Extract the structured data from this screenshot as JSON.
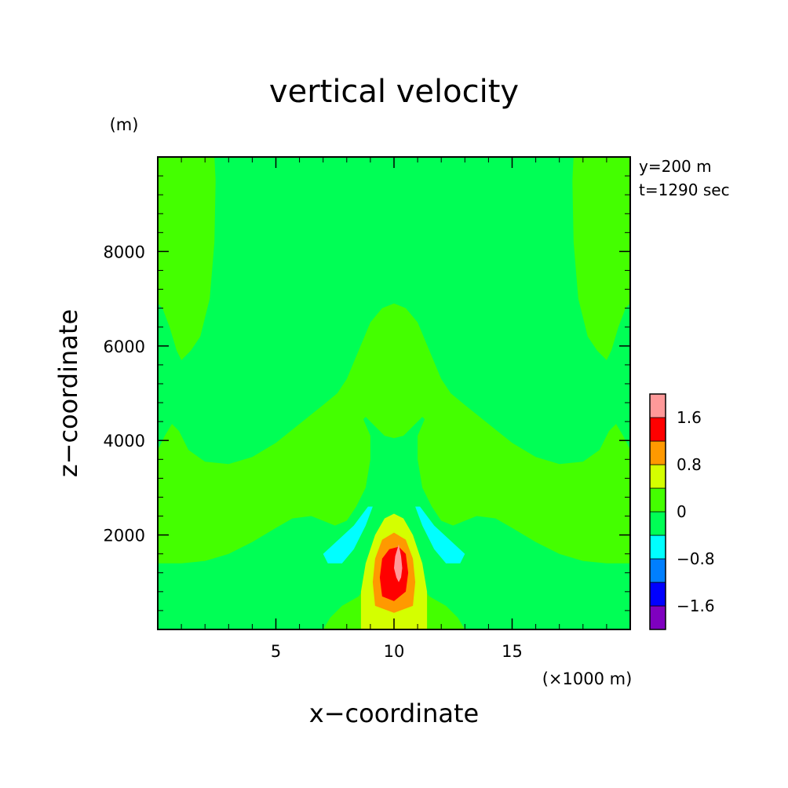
{
  "chart_data": {
    "type": "heatmap",
    "title": "vertical velocity",
    "xlabel": "x−coordinate",
    "ylabel": "z−coordinate",
    "x_unit": "(×1000 m)",
    "y_unit": "(m)",
    "annotation_lines": [
      "y=200 m",
      "t=1290 sec"
    ],
    "xlim": [
      0,
      20
    ],
    "ylim": [
      0,
      10000
    ],
    "x_ticks": [
      {
        "value": 5,
        "label": "5"
      },
      {
        "value": 10,
        "label": "10"
      },
      {
        "value": 15,
        "label": "15"
      }
    ],
    "y_ticks": [
      {
        "value": 2000,
        "label": "2000"
      },
      {
        "value": 4000,
        "label": "4000"
      },
      {
        "value": 6000,
        "label": "6000"
      },
      {
        "value": 8000,
        "label": "8000"
      }
    ],
    "colorbar": {
      "range": [
        -2.0,
        2.0
      ],
      "levels": [
        {
          "from": -2.0,
          "to": -1.6,
          "color": "#7f00bf"
        },
        {
          "from": -1.6,
          "to": -1.2,
          "color": "#0000ff"
        },
        {
          "from": -1.2,
          "to": -0.8,
          "color": "#007fff"
        },
        {
          "from": -0.8,
          "to": -0.4,
          "color": "#00ffff"
        },
        {
          "from": -0.4,
          "to": 0.0,
          "color": "#00ff55"
        },
        {
          "from": 0.0,
          "to": 0.4,
          "color": "#44ff00"
        },
        {
          "from": 0.4,
          "to": 0.8,
          "color": "#d4ff00"
        },
        {
          "from": 0.8,
          "to": 1.2,
          "color": "#ff9900"
        },
        {
          "from": 1.2,
          "to": 1.6,
          "color": "#ff0000"
        },
        {
          "from": 1.6,
          "to": 2.0,
          "color": "#ff9999"
        }
      ],
      "tick_labels": [
        {
          "value": 1.6,
          "label": "1.6"
        },
        {
          "value": 0.8,
          "label": "0.8"
        },
        {
          "value": 0,
          "label": "0"
        },
        {
          "value": -0.8,
          "label": "−0.8"
        },
        {
          "value": -1.6,
          "label": "−1.6"
        }
      ]
    },
    "regions": [
      {
        "name": "upper-left-positive",
        "level": 0.2,
        "points": [
          [
            0,
            10000
          ],
          [
            2.4,
            10000
          ],
          [
            2.45,
            9500
          ],
          [
            2.4,
            8200
          ],
          [
            2.2,
            7000
          ],
          [
            1.8,
            6200
          ],
          [
            1.4,
            5900
          ],
          [
            1.0,
            5700
          ],
          [
            0.8,
            5900
          ],
          [
            0.5,
            6400
          ],
          [
            0.2,
            6800
          ],
          [
            0,
            6900
          ]
        ]
      },
      {
        "name": "upper-right-positive",
        "level": 0.2,
        "points": [
          [
            20,
            10000
          ],
          [
            17.6,
            10000
          ],
          [
            17.55,
            9500
          ],
          [
            17.6,
            8200
          ],
          [
            17.8,
            7000
          ],
          [
            18.2,
            6200
          ],
          [
            18.6,
            5900
          ],
          [
            19.0,
            5700
          ],
          [
            19.2,
            5900
          ],
          [
            19.5,
            6400
          ],
          [
            19.8,
            6800
          ],
          [
            20,
            6900
          ]
        ]
      },
      {
        "name": "middle-positive-band",
        "level": 0.2,
        "points": [
          [
            0,
            3800
          ],
          [
            0.3,
            4100
          ],
          [
            0.6,
            4350
          ],
          [
            0.9,
            4200
          ],
          [
            1.3,
            3800
          ],
          [
            2.0,
            3550
          ],
          [
            3.0,
            3500
          ],
          [
            4.0,
            3650
          ],
          [
            5.0,
            3950
          ],
          [
            6.0,
            4350
          ],
          [
            7.0,
            4750
          ],
          [
            7.6,
            5000
          ],
          [
            8.0,
            5300
          ],
          [
            8.5,
            5900
          ],
          [
            9.0,
            6500
          ],
          [
            9.5,
            6800
          ],
          [
            10.0,
            6900
          ],
          [
            10.5,
            6800
          ],
          [
            11.0,
            6500
          ],
          [
            11.5,
            5900
          ],
          [
            12.0,
            5300
          ],
          [
            12.4,
            5000
          ],
          [
            13.0,
            4750
          ],
          [
            14.0,
            4350
          ],
          [
            15.0,
            3950
          ],
          [
            16.0,
            3650
          ],
          [
            17.0,
            3500
          ],
          [
            18.0,
            3550
          ],
          [
            18.7,
            3800
          ],
          [
            19.1,
            4200
          ],
          [
            19.4,
            4350
          ],
          [
            19.7,
            4100
          ],
          [
            20,
            3800
          ],
          [
            20,
            1400
          ],
          [
            19.0,
            1400
          ],
          [
            18.0,
            1450
          ],
          [
            17.0,
            1600
          ],
          [
            16.0,
            1850
          ],
          [
            15.0,
            2150
          ],
          [
            14.3,
            2350
          ],
          [
            13.5,
            2400
          ],
          [
            13.0,
            2300
          ],
          [
            12.5,
            2200
          ],
          [
            12.0,
            2300
          ],
          [
            11.6,
            2600
          ],
          [
            11.2,
            3000
          ],
          [
            11.0,
            3600
          ],
          [
            11.0,
            4100
          ],
          [
            11.3,
            4450
          ],
          [
            11.2,
            4500
          ],
          [
            10.8,
            4300
          ],
          [
            10.4,
            4100
          ],
          [
            10.0,
            4050
          ],
          [
            9.6,
            4100
          ],
          [
            9.2,
            4300
          ],
          [
            8.8,
            4500
          ],
          [
            8.7,
            4450
          ],
          [
            9.0,
            4100
          ],
          [
            9.0,
            3600
          ],
          [
            8.8,
            3000
          ],
          [
            8.4,
            2600
          ],
          [
            8.0,
            2300
          ],
          [
            7.5,
            2200
          ],
          [
            7.0,
            2300
          ],
          [
            6.5,
            2400
          ],
          [
            5.7,
            2350
          ],
          [
            5.0,
            2150
          ],
          [
            4.0,
            1850
          ],
          [
            3.0,
            1600
          ],
          [
            2.0,
            1450
          ],
          [
            1.0,
            1400
          ],
          [
            0,
            1400
          ]
        ]
      },
      {
        "name": "lower-positive-band",
        "level": 0.2,
        "points": [
          [
            7,
            0
          ],
          [
            7.3,
            250
          ],
          [
            7.8,
            500
          ],
          [
            8.5,
            700
          ],
          [
            8.8,
            900
          ],
          [
            9.0,
            1400
          ],
          [
            9.3,
            1900
          ],
          [
            9.6,
            2300
          ],
          [
            10.0,
            2450
          ],
          [
            10.4,
            2300
          ],
          [
            10.7,
            1900
          ],
          [
            11.0,
            1400
          ],
          [
            11.2,
            900
          ],
          [
            11.5,
            700
          ],
          [
            12.2,
            500
          ],
          [
            12.7,
            250
          ],
          [
            13,
            0
          ]
        ]
      },
      {
        "name": "core-level-0.4",
        "level": 0.6,
        "points": [
          [
            8.6,
            0
          ],
          [
            8.6,
            800
          ],
          [
            8.8,
            1400
          ],
          [
            9.2,
            2000
          ],
          [
            9.6,
            2350
          ],
          [
            10.0,
            2450
          ],
          [
            10.4,
            2350
          ],
          [
            10.8,
            2000
          ],
          [
            11.2,
            1400
          ],
          [
            11.4,
            800
          ],
          [
            11.4,
            0
          ]
        ]
      },
      {
        "name": "core-level-0.8",
        "level": 1.0,
        "points": [
          [
            9.2,
            500
          ],
          [
            9.1,
            1000
          ],
          [
            9.2,
            1500
          ],
          [
            9.5,
            1900
          ],
          [
            10.0,
            2050
          ],
          [
            10.5,
            1900
          ],
          [
            10.8,
            1500
          ],
          [
            10.9,
            1000
          ],
          [
            10.8,
            500
          ],
          [
            10.0,
            350
          ]
        ]
      },
      {
        "name": "core-level-1.2",
        "level": 1.4,
        "points": [
          [
            9.5,
            700
          ],
          [
            9.4,
            1100
          ],
          [
            9.5,
            1500
          ],
          [
            9.8,
            1700
          ],
          [
            10.2,
            1750
          ],
          [
            10.5,
            1600
          ],
          [
            10.6,
            1200
          ],
          [
            10.5,
            800
          ],
          [
            10.0,
            600
          ]
        ]
      },
      {
        "name": "core-level-1.6",
        "level": 1.8,
        "points": [
          [
            10.2,
            1800
          ],
          [
            10.05,
            1550
          ],
          [
            10.0,
            1300
          ],
          [
            10.1,
            1100
          ],
          [
            10.2,
            1000
          ],
          [
            10.3,
            1100
          ],
          [
            10.35,
            1300
          ],
          [
            10.3,
            1550
          ]
        ]
      },
      {
        "name": "left-negative-lobe",
        "level": -0.6,
        "points": [
          [
            7.0,
            1600
          ],
          [
            8.3,
            2200
          ],
          [
            8.9,
            2600
          ],
          [
            9.1,
            2600
          ],
          [
            8.8,
            2200
          ],
          [
            8.3,
            1700
          ],
          [
            7.8,
            1400
          ],
          [
            7.2,
            1400
          ]
        ]
      },
      {
        "name": "right-negative-lobe",
        "level": -0.6,
        "points": [
          [
            13.0,
            1600
          ],
          [
            11.7,
            2200
          ],
          [
            11.1,
            2600
          ],
          [
            10.9,
            2600
          ],
          [
            11.2,
            2200
          ],
          [
            11.7,
            1700
          ],
          [
            12.2,
            1400
          ],
          [
            12.8,
            1400
          ]
        ]
      }
    ]
  }
}
